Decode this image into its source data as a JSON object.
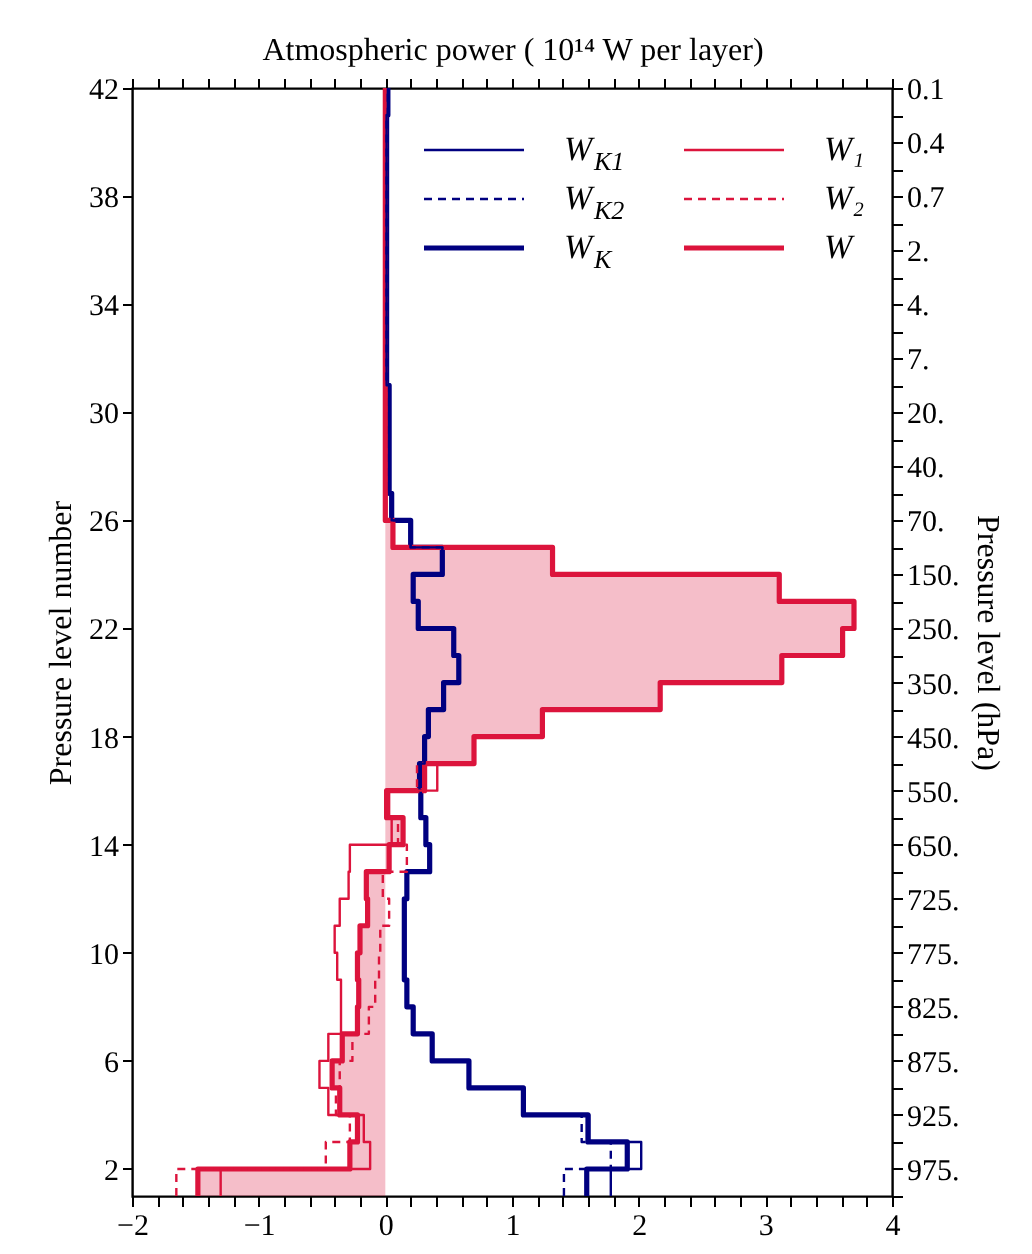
{
  "chart_data": {
    "type": "step",
    "orientation": "horizontal",
    "title": "Atmospheric power ( 10¹⁴ W per layer)",
    "ylabel": "Pressure level number",
    "y2label": "Pressure level (hPa)",
    "xlim": [
      -2,
      4
    ],
    "ylim": [
      1,
      42
    ],
    "y2_categories": [
      "0.1",
      null,
      "0.4",
      null,
      "0.7",
      null,
      "2.",
      null,
      "4.",
      null,
      "7.",
      null,
      "20.",
      null,
      "40.",
      null,
      "70.",
      null,
      "150.",
      null,
      "250.",
      null,
      "350.",
      null,
      "450.",
      null,
      "550.",
      null,
      "650.",
      null,
      "725.",
      null,
      "775.",
      null,
      "825.",
      null,
      "875.",
      null,
      "925.",
      null,
      "975.",
      null
    ],
    "xticks": [
      -2,
      {
        "value": -1.8,
        "label": null
      },
      {
        "value": -1.6,
        "label": null
      },
      {
        "value": -1.4,
        "label": null
      },
      {
        "value": -1.2,
        "label": null
      },
      -1,
      {
        "value": -0.8,
        "label": null
      },
      {
        "value": -0.6,
        "label": null
      },
      {
        "value": -0.4,
        "label": null
      },
      {
        "value": -0.2,
        "label": null
      },
      0,
      {
        "value": 0.2,
        "label": null
      },
      {
        "value": 0.4,
        "label": null
      },
      {
        "value": 0.6,
        "label": null
      },
      {
        "value": 0.8,
        "label": null
      },
      1,
      {
        "value": 1.2,
        "label": null
      },
      {
        "value": 1.4,
        "label": null
      },
      {
        "value": 1.6,
        "label": null
      },
      {
        "value": 1.8,
        "label": null
      },
      2,
      {
        "value": 2.2,
        "label": null
      },
      {
        "value": 2.4,
        "label": null
      },
      {
        "value": 2.6,
        "label": null
      },
      {
        "value": 2.8,
        "label": null
      },
      3,
      {
        "value": 3.2,
        "label": null
      },
      {
        "value": 3.4,
        "label": null
      },
      {
        "value": 3.6,
        "label": null
      },
      {
        "value": 3.8,
        "label": null
      },
      4
    ],
    "yticks": [
      2,
      {
        "value": 3,
        "label": null
      },
      {
        "value": 4,
        "label": null
      },
      {
        "value": 5,
        "label": null
      },
      6,
      {
        "value": 7,
        "label": null
      },
      {
        "value": 8,
        "label": null
      },
      {
        "value": 9,
        "label": null
      },
      10,
      {
        "value": 11,
        "label": null
      },
      {
        "value": 12,
        "label": null
      },
      {
        "value": 13,
        "label": null
      },
      14,
      {
        "value": 15,
        "label": null
      },
      {
        "value": 16,
        "label": null
      },
      {
        "value": 17,
        "label": null
      },
      18,
      {
        "value": 19,
        "label": null
      },
      {
        "value": 20,
        "label": null
      },
      {
        "value": 21,
        "label": null
      },
      22,
      {
        "value": 23,
        "label": null
      },
      {
        "value": 24,
        "label": null
      },
      {
        "value": 25,
        "label": null
      },
      26,
      {
        "value": 27,
        "label": null
      },
      {
        "value": 28,
        "label": null
      },
      {
        "value": 29,
        "label": null
      },
      30,
      {
        "value": 31,
        "label": null
      },
      {
        "value": 32,
        "label": null
      },
      {
        "value": 33,
        "label": null
      },
      34,
      {
        "value": 35,
        "label": null
      },
      {
        "value": 36,
        "label": null
      },
      {
        "value": 37,
        "label": null
      },
      38,
      {
        "value": 39,
        "label": null
      },
      {
        "value": 40,
        "label": null
      },
      {
        "value": 41,
        "label": null
      },
      42
    ],
    "grid": false,
    "legend": "top right",
    "marker": "none",
    "x": [
      1,
      2,
      3,
      4,
      5,
      6,
      7,
      8,
      9,
      10,
      11,
      12,
      13,
      14,
      15,
      16,
      17,
      18,
      19,
      20,
      21,
      22,
      23,
      24,
      25,
      26,
      27,
      28,
      29,
      30,
      31,
      32,
      33,
      34,
      35,
      36,
      37,
      38,
      39,
      40,
      41,
      42
    ],
    "series": [
      {
        "name": "W$_{K1}$",
        "color": "#000080",
        "line_style": "solid",
        "values": [
          1.78,
          2.02,
          1.61,
          1.09,
          0.66,
          0.37,
          0.22,
          0.17,
          0.15,
          0.15,
          0.15,
          0.17,
          0.35,
          0.32,
          0.28,
          0.27,
          0.31,
          0.34,
          0.46,
          0.58,
          0.54,
          0.26,
          0.22,
          0.45,
          0.2,
          0.05,
          0.03,
          0.03,
          0.03,
          0.03,
          0.01,
          0.01,
          0.01,
          0.01,
          0.01,
          0.01,
          0.01,
          0.01,
          0.01,
          0.01,
          0.02,
          0.02
        ]
      },
      {
        "name": "W$_{K2}$",
        "color": "#000080",
        "line_style": "dashed",
        "values": [
          1.41,
          1.78,
          1.55,
          1.09,
          0.66,
          0.37,
          0.22,
          0.17,
          0.15,
          0.15,
          0.15,
          0.17,
          0.35,
          0.32,
          0.28,
          0.27,
          0.31,
          0.34,
          0.46,
          0.58,
          0.54,
          0.26,
          0.22,
          0.45,
          0.2,
          0.05,
          0.03,
          0.03,
          0.03,
          0.03,
          0.01,
          0.01,
          0.01,
          0.01,
          0.01,
          0.01,
          0.01,
          0.01,
          0.01,
          0.01,
          0.02,
          0.02
        ]
      },
      {
        "name": "W$_{K}$",
        "color": "#000080",
        "line_style": "solid",
        "values": [
          1.59,
          1.91,
          1.6,
          1.09,
          0.66,
          0.37,
          0.22,
          0.17,
          0.15,
          0.15,
          0.15,
          0.17,
          0.35,
          0.32,
          0.28,
          0.27,
          0.31,
          0.34,
          0.46,
          0.58,
          0.54,
          0.26,
          0.22,
          0.45,
          0.2,
          0.05,
          0.03,
          0.03,
          0.03,
          0.03,
          0.01,
          0.01,
          0.01,
          0.01,
          0.01,
          0.01,
          0.01,
          0.01,
          0.01,
          0.01,
          0.02,
          0.02
        ]
      },
      {
        "name": "W₁",
        "color": "#dc143c",
        "line_style": "solid",
        "x": [
          1,
          2,
          3,
          4,
          5,
          6,
          7,
          8,
          9,
          10,
          11,
          12,
          13,
          14,
          15,
          16,
          17
        ],
        "values": [
          -1.3,
          -0.12,
          -0.17,
          -0.45,
          -0.52,
          -0.45,
          -0.35,
          -0.35,
          -0.38,
          -0.4,
          -0.36,
          -0.29,
          -0.28,
          0.05,
          0.03,
          0.41,
          0.41
        ]
      },
      {
        "name": "W₂",
        "color": "#dc143c",
        "line_style": "dashed",
        "x": [
          1,
          2,
          3,
          4,
          5,
          6,
          7,
          8,
          9,
          10,
          11,
          12,
          13,
          14,
          15,
          16,
          17
        ],
        "values": [
          -1.65,
          -0.47,
          -0.28,
          -0.39,
          -0.36,
          -0.26,
          -0.13,
          -0.08,
          -0.05,
          -0.04,
          0.03,
          -0.02,
          0.17,
          0.1,
          0.02,
          0.25,
          0.25
        ]
      },
      {
        "name": "W",
        "type": "area",
        "color": "#dc143c",
        "line_style": "solid",
        "values": [
          -1.48,
          -0.28,
          -0.22,
          -0.36,
          -0.42,
          -0.34,
          -0.22,
          -0.21,
          -0.22,
          -0.2,
          -0.14,
          -0.15,
          0.03,
          0.14,
          0.01,
          0.31,
          0.7,
          1.24,
          2.17,
          3.13,
          3.61,
          3.7,
          3.11,
          1.32,
          0.06,
          0.0,
          0.0,
          0.0,
          0.0,
          0.0,
          0.0,
          0.0,
          0.0,
          0.0,
          0.0,
          0.0,
          0.0,
          0.0,
          0.0,
          0.0,
          0.0,
          0.0
        ]
      }
    ]
  }
}
